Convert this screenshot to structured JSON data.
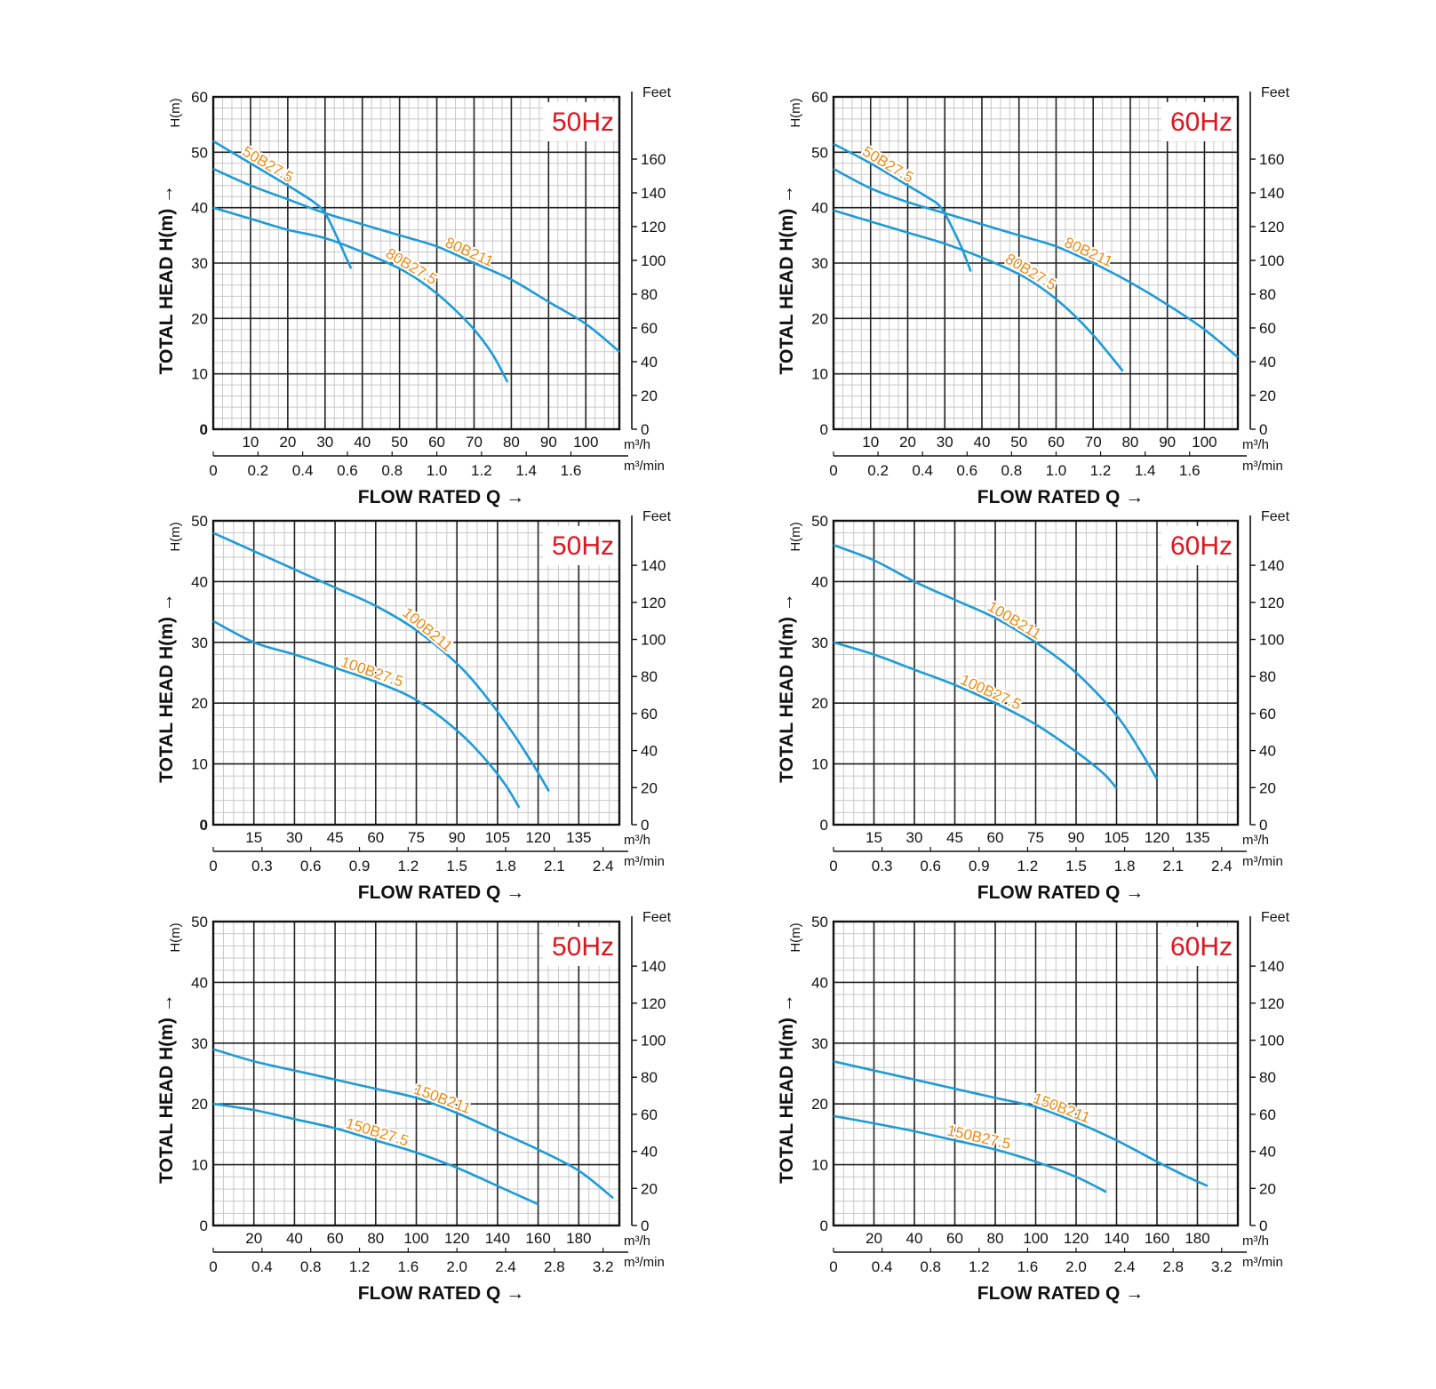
{
  "chart_data": [
    {
      "type": "line",
      "freq_label": "50Hz",
      "ylabel": "TOTAL HEAD H(m) →",
      "ylabel_small": "H(m)",
      "xlabel": "FLOW RATED Q →",
      "y2_label": "Feet",
      "x_unit": "m³/h",
      "x2_unit": "m³/min",
      "ylim": [
        0,
        60
      ],
      "xlim": [
        0,
        109
      ],
      "y_ticks": [
        "0",
        "10",
        "20",
        "30",
        "40",
        "50",
        "60"
      ],
      "x_ticks": [
        "10",
        "20",
        "30",
        "40",
        "50",
        "60",
        "70",
        "80",
        "90",
        "100"
      ],
      "x2_ticks": [
        "0",
        "0.2",
        "0.4",
        "0.6",
        "0.8",
        "1.0",
        "1.2",
        "1.4",
        "1.6"
      ],
      "y2_ticks": [
        "0",
        "20",
        "40",
        "60",
        "80",
        "100",
        "120",
        "140",
        "160"
      ],
      "grid": true,
      "series": [
        {
          "name": "50B27.5",
          "x": [
            0,
            10,
            20,
            27,
            30,
            33,
            35,
            37
          ],
          "y": [
            52,
            48,
            44,
            41,
            39,
            35,
            32,
            29
          ]
        },
        {
          "name": "80B211",
          "x": [
            0,
            10,
            20,
            30,
            40,
            50,
            60,
            70,
            80,
            90,
            100,
            109
          ],
          "y": [
            47,
            44,
            41.5,
            39,
            37,
            35,
            33,
            30,
            27,
            23,
            19,
            14
          ]
        },
        {
          "name": "80B27.5",
          "x": [
            0,
            10,
            20,
            30,
            40,
            50,
            55,
            60,
            65,
            70,
            75,
            79
          ],
          "y": [
            40,
            38,
            36,
            34.5,
            32,
            29,
            27,
            24.5,
            21.5,
            18,
            13.5,
            8.5
          ]
        }
      ]
    },
    {
      "type": "line",
      "freq_label": "60Hz",
      "ylabel": "TOTAL HEAD H(m) →",
      "ylabel_small": "H(m)",
      "xlabel": "FLOW RATED Q →",
      "y2_label": "Feet",
      "x_unit": "m³/h",
      "x2_unit": "m³/min",
      "ylim": [
        0,
        60
      ],
      "xlim": [
        0,
        109
      ],
      "y_ticks": [
        "0",
        "10",
        "20",
        "30",
        "40",
        "50",
        "60"
      ],
      "x_ticks": [
        "10",
        "20",
        "30",
        "40",
        "50",
        "60",
        "70",
        "80",
        "90",
        "100"
      ],
      "x2_ticks": [
        "0",
        "0.2",
        "0.4",
        "0.6",
        "0.8",
        "1.0",
        "1.2",
        "1.4",
        "1.6"
      ],
      "y2_ticks": [
        "0",
        "20",
        "40",
        "60",
        "80",
        "100",
        "120",
        "140",
        "160"
      ],
      "grid": true,
      "series": [
        {
          "name": "50B27.5",
          "x": [
            0,
            10,
            20,
            25,
            29,
            33,
            35,
            37
          ],
          "y": [
            51.5,
            48,
            44,
            42,
            40,
            35,
            32,
            28.5
          ]
        },
        {
          "name": "80B211",
          "x": [
            0,
            10,
            20,
            30,
            40,
            50,
            60,
            70,
            80,
            90,
            100,
            109
          ],
          "y": [
            47,
            43.5,
            41,
            39,
            37,
            35,
            33,
            30,
            26.5,
            22.5,
            18,
            13
          ]
        },
        {
          "name": "80B27.5",
          "x": [
            0,
            10,
            20,
            30,
            40,
            50,
            55,
            60,
            65,
            70,
            75,
            78
          ],
          "y": [
            39.5,
            37.5,
            35.5,
            33.5,
            31,
            28,
            26,
            23.5,
            20.5,
            17,
            13,
            10.5
          ]
        }
      ]
    },
    {
      "type": "line",
      "freq_label": "50Hz",
      "ylabel": "TOTAL HEAD H(m) →",
      "ylabel_small": "H(m)",
      "xlabel": "FLOW RATED Q →",
      "y2_label": "Feet",
      "x_unit": "m³/h",
      "x2_unit": "m³/min",
      "ylim": [
        0,
        50
      ],
      "xlim": [
        0,
        150
      ],
      "y_ticks": [
        "0",
        "10",
        "20",
        "30",
        "40",
        "50"
      ],
      "x_ticks": [
        "15",
        "30",
        "45",
        "60",
        "75",
        "90",
        "105",
        "120",
        "135"
      ],
      "x2_ticks": [
        "0",
        "0.3",
        "0.6",
        "0.9",
        "1.2",
        "1.5",
        "1.8",
        "2.1",
        "2.4"
      ],
      "y2_ticks": [
        "0",
        "20",
        "40",
        "60",
        "80",
        "100",
        "120",
        "140"
      ],
      "grid": true,
      "series": [
        {
          "name": "100B211",
          "x": [
            0,
            15,
            30,
            45,
            60,
            75,
            90,
            100,
            110,
            118,
            124
          ],
          "y": [
            48,
            45,
            42,
            39,
            36,
            32,
            26.5,
            21.5,
            15.5,
            10,
            5.5
          ]
        },
        {
          "name": "100B27.5",
          "x": [
            0,
            15,
            30,
            45,
            60,
            75,
            90,
            100,
            108,
            113
          ],
          "y": [
            33.5,
            30,
            28,
            25.8,
            23.5,
            20.5,
            15.5,
            11,
            6.5,
            2.8
          ]
        }
      ]
    },
    {
      "type": "line",
      "freq_label": "60Hz",
      "ylabel": "TOTAL HEAD H(m) →",
      "ylabel_small": "H(m)",
      "xlabel": "FLOW RATED Q →",
      "y2_label": "Feet",
      "x_unit": "m³/h",
      "x2_unit": "m³/min",
      "ylim": [
        0,
        50
      ],
      "xlim": [
        0,
        150
      ],
      "y_ticks": [
        "0",
        "10",
        "20",
        "30",
        "40",
        "50"
      ],
      "x_ticks": [
        "15",
        "30",
        "45",
        "60",
        "75",
        "90",
        "105",
        "120",
        "135"
      ],
      "x2_ticks": [
        "0",
        "0.3",
        "0.6",
        "0.9",
        "1.2",
        "1.5",
        "1.8",
        "2.1",
        "2.4"
      ],
      "y2_ticks": [
        "0",
        "20",
        "40",
        "60",
        "80",
        "100",
        "120",
        "140"
      ],
      "grid": true,
      "series": [
        {
          "name": "100B211",
          "x": [
            0,
            15,
            30,
            45,
            60,
            75,
            90,
            105,
            114,
            120
          ],
          "y": [
            46,
            43.5,
            40,
            37,
            34,
            30,
            25,
            18,
            12,
            7.5
          ]
        },
        {
          "name": "100B27.5",
          "x": [
            0,
            15,
            30,
            45,
            60,
            75,
            90,
            100,
            105
          ],
          "y": [
            30,
            28,
            25.5,
            23,
            20,
            16.5,
            12,
            8.5,
            6
          ]
        }
      ]
    },
    {
      "type": "line",
      "freq_label": "50Hz",
      "ylabel": "TOTAL HEAD H(m) →",
      "ylabel_small": "H(m)",
      "xlabel": "FLOW RATED Q →",
      "y2_label": "Feet",
      "x_unit": "m³/h",
      "x2_unit": "m³/min",
      "ylim": [
        0,
        50
      ],
      "xlim": [
        0,
        200
      ],
      "y_ticks": [
        "0",
        "10",
        "20",
        "30",
        "40",
        "50"
      ],
      "x_ticks": [
        "20",
        "40",
        "60",
        "80",
        "100",
        "120",
        "140",
        "160",
        "180"
      ],
      "x2_ticks": [
        "0",
        "0.4",
        "0.8",
        "1.2",
        "1.6",
        "2.0",
        "2.4",
        "2.8",
        "3.2"
      ],
      "y2_ticks": [
        "0",
        "20",
        "40",
        "60",
        "80",
        "100",
        "120",
        "140"
      ],
      "grid": true,
      "series": [
        {
          "name": "150B211",
          "x": [
            0,
            20,
            40,
            60,
            80,
            100,
            120,
            140,
            160,
            180,
            197
          ],
          "y": [
            29,
            27,
            25.5,
            24,
            22.5,
            21,
            18.5,
            15.5,
            12.5,
            9,
            4.5
          ]
        },
        {
          "name": "150B27.5",
          "x": [
            0,
            20,
            40,
            60,
            80,
            100,
            120,
            140,
            160
          ],
          "y": [
            20,
            19,
            17.5,
            16,
            14,
            12,
            9.5,
            6.5,
            3.5
          ]
        }
      ]
    },
    {
      "type": "line",
      "freq_label": "60Hz",
      "ylabel": "TOTAL HEAD H(m) →",
      "ylabel_small": "H(m)",
      "xlabel": "FLOW RATED Q →",
      "y2_label": "Feet",
      "x_unit": "m³/h",
      "x2_unit": "m³/min",
      "ylim": [
        0,
        50
      ],
      "xlim": [
        0,
        200
      ],
      "y_ticks": [
        "0",
        "10",
        "20",
        "30",
        "40",
        "50"
      ],
      "x_ticks": [
        "20",
        "40",
        "60",
        "80",
        "100",
        "120",
        "140",
        "160",
        "180"
      ],
      "x2_ticks": [
        "0",
        "0.4",
        "0.8",
        "1.2",
        "1.6",
        "2.0",
        "2.4",
        "2.8",
        "3.2"
      ],
      "y2_ticks": [
        "0",
        "20",
        "40",
        "60",
        "80",
        "100",
        "120",
        "140"
      ],
      "grid": true,
      "series": [
        {
          "name": "150B211",
          "x": [
            0,
            20,
            40,
            60,
            80,
            100,
            120,
            140,
            160,
            175,
            185
          ],
          "y": [
            27,
            25.5,
            24,
            22.5,
            21,
            19.5,
            17,
            14,
            10.5,
            8,
            6.5
          ]
        },
        {
          "name": "150B27.5",
          "x": [
            0,
            20,
            40,
            60,
            80,
            100,
            120,
            135
          ],
          "y": [
            18,
            16.8,
            15.5,
            14,
            12.5,
            10.5,
            8,
            5.5
          ]
        }
      ]
    }
  ]
}
